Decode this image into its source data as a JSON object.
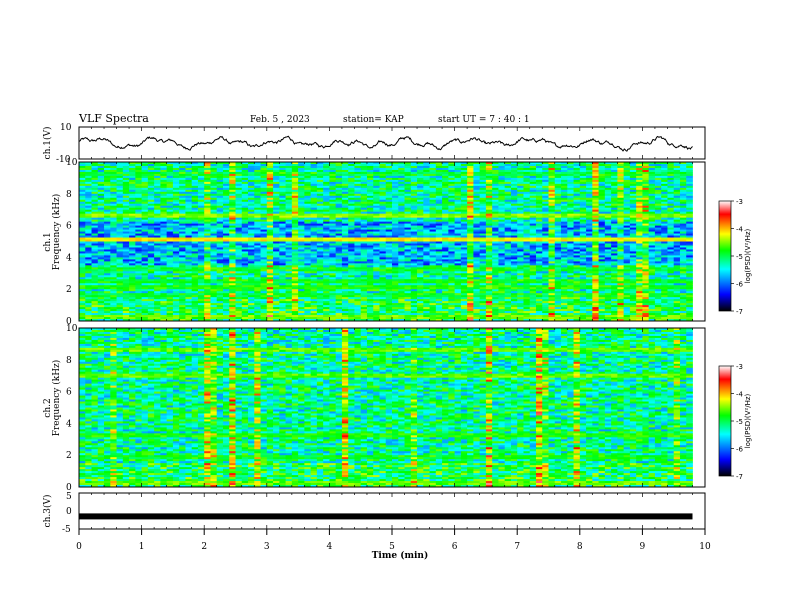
{
  "header": {
    "title": "VLF Spectra",
    "date": "Feb. 5  , 2023",
    "station": "station= KAP",
    "start": "start  UT =   7  : 40 : 1"
  },
  "chart_data": [
    {
      "type": "line",
      "panel": "ch1-waveform",
      "ylabel": "ch.1(V)",
      "ylim": [
        -10,
        10
      ],
      "yticks": [
        10,
        -10
      ],
      "xlim": [
        0,
        10
      ],
      "description_values_min_max": [
        -4,
        4
      ]
    },
    {
      "type": "heatmap",
      "panel": "ch1-spectrogram",
      "ylabel_channel": "ch.1",
      "ylabel": "Frequency (kHz)",
      "ylim": [
        0,
        10
      ],
      "yticks": [
        0,
        2,
        4,
        6,
        8,
        10
      ],
      "xlim": [
        0,
        9.8
      ],
      "colorbar": {
        "label": "log(PSD)(V²/Hz)",
        "range": [
          -7,
          -3
        ],
        "ticks": [
          -3,
          -4,
          -5,
          -6,
          -7
        ]
      },
      "bands_khz": [
        {
          "freq": 0.3,
          "level": -4.6
        },
        {
          "freq": 1.0,
          "level": -5.4
        },
        {
          "freq": 1.6,
          "level": -5.0
        },
        {
          "freq": 2.1,
          "level": -4.8
        },
        {
          "freq": 2.5,
          "level": -4.9
        },
        {
          "freq": 3.3,
          "level": -5.0
        },
        {
          "freq": 5.1,
          "level": -4.2
        },
        {
          "freq": 6.6,
          "level": -4.5
        },
        {
          "freq": 9.2,
          "level": -5.0
        }
      ]
    },
    {
      "type": "heatmap",
      "panel": "ch2-spectrogram",
      "ylabel_channel": "ch.2",
      "ylabel": "Frequency (kHz)",
      "ylim": [
        0,
        10
      ],
      "yticks": [
        0,
        2,
        4,
        6,
        8,
        10
      ],
      "xlim": [
        0,
        9.8
      ],
      "colorbar": {
        "label": "log(PSD)(V²/Hz)",
        "range": [
          -7,
          -3
        ],
        "ticks": [
          -3,
          -4,
          -5,
          -6,
          -7
        ]
      },
      "bands_khz": [
        {
          "freq": 0.3,
          "level": -4.6
        },
        {
          "freq": 1.9,
          "level": -4.9
        },
        {
          "freq": 3.2,
          "level": -4.8
        },
        {
          "freq": 7.0,
          "level": -4.6
        },
        {
          "freq": 8.6,
          "level": -4.6
        }
      ]
    },
    {
      "type": "line",
      "panel": "ch3-waveform",
      "ylabel": "ch.3(V)",
      "ylim": [
        -5,
        5
      ],
      "yticks": [
        5,
        0,
        -5
      ],
      "xlim": [
        0,
        10
      ],
      "xlabel": "Time (min)",
      "xticks": [
        0,
        1,
        2,
        3,
        4,
        5,
        6,
        7,
        8,
        9,
        10
      ],
      "constant_value": -1.5,
      "data_end_min": 9.8
    }
  ],
  "colors": {
    "line": "#000000",
    "colormap": [
      "#000000",
      "#0000ff",
      "#00ffff",
      "#00ff00",
      "#ffff00",
      "#ff0000",
      "#ffffff"
    ]
  }
}
